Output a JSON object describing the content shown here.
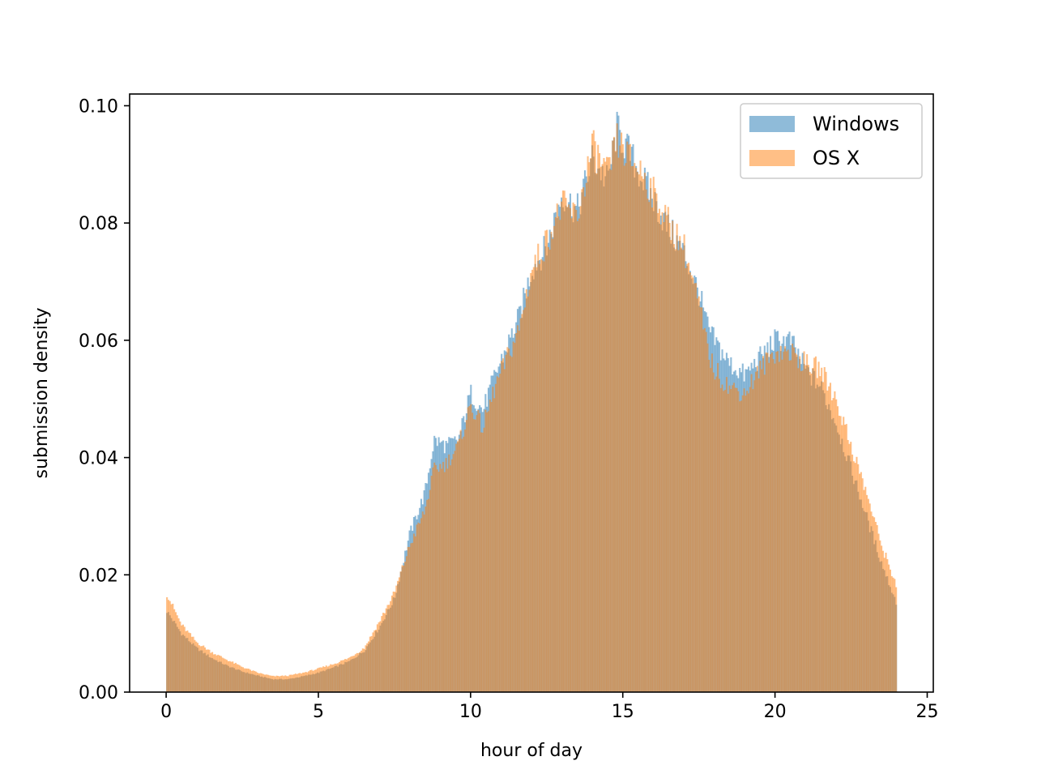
{
  "chart_data": {
    "type": "histogram",
    "title": "",
    "xlabel": "hour of day",
    "ylabel": "submission density",
    "xlim": [
      -1.2,
      25.2
    ],
    "ylim": [
      0.0,
      0.102
    ],
    "xticks": [
      0,
      5,
      10,
      15,
      20,
      25
    ],
    "xtick_labels": [
      "0",
      "5",
      "10",
      "15",
      "20",
      "25"
    ],
    "yticks": [
      0.0,
      0.02,
      0.04,
      0.06,
      0.08,
      0.1
    ],
    "ytick_labels": [
      "0.00",
      "0.02",
      "0.04",
      "0.06",
      "0.08",
      "0.10"
    ],
    "grid": false,
    "legend_position": "top-right",
    "bin_range": [
      0,
      24
    ],
    "series": [
      {
        "name": "Windows",
        "color": "#1f77b4",
        "alpha": 0.5,
        "profile": [
          [
            0.0,
            0.014
          ],
          [
            0.5,
            0.01
          ],
          [
            1.0,
            0.0075
          ],
          [
            1.5,
            0.0058
          ],
          [
            2.0,
            0.0045
          ],
          [
            2.5,
            0.0035
          ],
          [
            3.0,
            0.0028
          ],
          [
            3.5,
            0.0022
          ],
          [
            4.0,
            0.0022
          ],
          [
            4.5,
            0.0027
          ],
          [
            5.0,
            0.0033
          ],
          [
            5.5,
            0.0042
          ],
          [
            6.0,
            0.0052
          ],
          [
            6.5,
            0.007
          ],
          [
            7.0,
            0.011
          ],
          [
            7.5,
            0.016
          ],
          [
            8.0,
            0.027
          ],
          [
            8.5,
            0.034
          ],
          [
            8.8,
            0.043
          ],
          [
            9.2,
            0.042
          ],
          [
            9.6,
            0.043
          ],
          [
            10.0,
            0.051
          ],
          [
            10.4,
            0.048
          ],
          [
            10.8,
            0.054
          ],
          [
            11.2,
            0.059
          ],
          [
            11.6,
            0.064
          ],
          [
            12.0,
            0.072
          ],
          [
            12.5,
            0.076
          ],
          [
            13.0,
            0.085
          ],
          [
            13.5,
            0.082
          ],
          [
            14.0,
            0.091
          ],
          [
            14.5,
            0.087
          ],
          [
            14.8,
            0.096
          ],
          [
            15.2,
            0.092
          ],
          [
            15.6,
            0.088
          ],
          [
            16.0,
            0.084
          ],
          [
            16.5,
            0.079
          ],
          [
            17.0,
            0.075
          ],
          [
            17.5,
            0.068
          ],
          [
            17.8,
            0.062
          ],
          [
            18.0,
            0.06
          ],
          [
            18.5,
            0.056
          ],
          [
            19.0,
            0.054
          ],
          [
            19.5,
            0.057
          ],
          [
            20.0,
            0.06
          ],
          [
            20.5,
            0.06
          ],
          [
            21.0,
            0.055
          ],
          [
            21.5,
            0.052
          ],
          [
            22.0,
            0.046
          ],
          [
            22.5,
            0.038
          ],
          [
            23.0,
            0.03
          ],
          [
            23.5,
            0.022
          ],
          [
            24.0,
            0.015
          ]
        ]
      },
      {
        "name": "OS X",
        "color": "#ff7f0e",
        "alpha": 0.5,
        "profile": [
          [
            0.0,
            0.017
          ],
          [
            0.5,
            0.0115
          ],
          [
            1.0,
            0.0085
          ],
          [
            1.5,
            0.0068
          ],
          [
            2.0,
            0.0055
          ],
          [
            2.5,
            0.0043
          ],
          [
            3.0,
            0.0033
          ],
          [
            3.5,
            0.0027
          ],
          [
            4.0,
            0.0028
          ],
          [
            4.5,
            0.0033
          ],
          [
            5.0,
            0.004
          ],
          [
            5.5,
            0.0048
          ],
          [
            6.0,
            0.0058
          ],
          [
            6.5,
            0.0075
          ],
          [
            7.0,
            0.012
          ],
          [
            7.5,
            0.017
          ],
          [
            8.0,
            0.025
          ],
          [
            8.5,
            0.031
          ],
          [
            8.8,
            0.038
          ],
          [
            9.2,
            0.039
          ],
          [
            9.6,
            0.042
          ],
          [
            10.0,
            0.049
          ],
          [
            10.4,
            0.045
          ],
          [
            10.8,
            0.052
          ],
          [
            11.2,
            0.057
          ],
          [
            11.6,
            0.062
          ],
          [
            12.0,
            0.072
          ],
          [
            12.5,
            0.077
          ],
          [
            13.0,
            0.083
          ],
          [
            13.5,
            0.081
          ],
          [
            14.0,
            0.093
          ],
          [
            14.5,
            0.088
          ],
          [
            14.8,
            0.094
          ],
          [
            15.2,
            0.091
          ],
          [
            15.6,
            0.089
          ],
          [
            16.0,
            0.085
          ],
          [
            16.5,
            0.08
          ],
          [
            17.0,
            0.076
          ],
          [
            17.5,
            0.066
          ],
          [
            17.8,
            0.058
          ],
          [
            18.0,
            0.055
          ],
          [
            18.5,
            0.052
          ],
          [
            19.0,
            0.051
          ],
          [
            19.5,
            0.055
          ],
          [
            20.0,
            0.058
          ],
          [
            20.5,
            0.058
          ],
          [
            21.0,
            0.056
          ],
          [
            21.5,
            0.055
          ],
          [
            22.0,
            0.05
          ],
          [
            22.5,
            0.042
          ],
          [
            23.0,
            0.034
          ],
          [
            23.5,
            0.025
          ],
          [
            24.0,
            0.018
          ]
        ]
      }
    ]
  }
}
